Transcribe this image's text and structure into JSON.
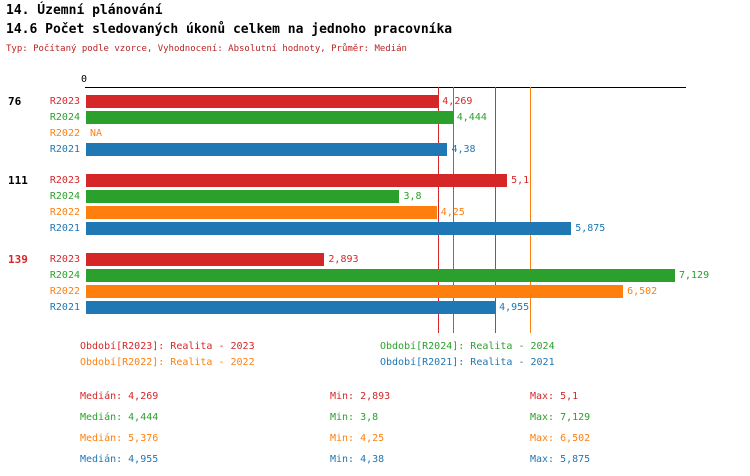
{
  "header": {
    "title_line1": "14. Územní plánování",
    "title_line2": "14.6 Počet sledovaných úkonů celkem na jednoho pracovníka",
    "subtitle": "Typ: Počítaný podle vzorce, Vyhodnocení: Absolutní hodnoty, Průměr: Medián"
  },
  "colors": {
    "R2023": "#d62728",
    "R2024": "#2ca02c",
    "R2022": "#ff7f0e",
    "R2021": "#1f77b4",
    "axis": "#000000",
    "subtitle": "#bb2222",
    "group_label_default": "#000000",
    "group_label_highlight": "#d62728"
  },
  "chart_data": {
    "type": "bar",
    "orientation": "horizontal",
    "title": "14.6 Počet sledovaných úkonů celkem na jednoho pracovníka",
    "x_axis": {
      "min": 0,
      "max": 7.25,
      "zero_label": "0",
      "grid": false
    },
    "series_order": [
      "R2023",
      "R2024",
      "R2022",
      "R2021"
    ],
    "groups": [
      {
        "label": "76",
        "highlighted": false,
        "bars": [
          {
            "series": "R2023",
            "value": 4.269,
            "display": "4,269"
          },
          {
            "series": "R2024",
            "value": 4.444,
            "display": "4,444"
          },
          {
            "series": "R2022",
            "value": null,
            "display": "NA"
          },
          {
            "series": "R2021",
            "value": 4.38,
            "display": "4,38"
          }
        ]
      },
      {
        "label": "111",
        "highlighted": false,
        "bars": [
          {
            "series": "R2023",
            "value": 5.1,
            "display": "5,1"
          },
          {
            "series": "R2024",
            "value": 3.8,
            "display": "3,8"
          },
          {
            "series": "R2022",
            "value": 4.25,
            "display": "4,25"
          },
          {
            "series": "R2021",
            "value": 5.875,
            "display": "5,875"
          }
        ]
      },
      {
        "label": "139",
        "highlighted": true,
        "bars": [
          {
            "series": "R2023",
            "value": 2.893,
            "display": "2,893"
          },
          {
            "series": "R2024",
            "value": 7.129,
            "display": "7,129"
          },
          {
            "series": "R2022",
            "value": 6.502,
            "display": "6,502"
          },
          {
            "series": "R2021",
            "value": 4.955,
            "display": "4,955"
          }
        ]
      }
    ],
    "median_lines": [
      {
        "series": "R2023",
        "value": 4.269
      },
      {
        "series": "R2024",
        "value": 4.444
      },
      {
        "series": "R2022",
        "value": 5.376
      },
      {
        "series": "R2021",
        "value": 4.955
      }
    ]
  },
  "legend": {
    "items": [
      {
        "series": "R2023",
        "text": "Období[R2023]: Realita - 2023"
      },
      {
        "series": "R2024",
        "text": "Období[R2024]: Realita - 2024"
      },
      {
        "series": "R2022",
        "text": "Období[R2022]: Realita - 2022"
      },
      {
        "series": "R2021",
        "text": "Období[R2021]: Realita - 2021"
      }
    ]
  },
  "stats": {
    "labels": {
      "median": "Medián",
      "min": "Min",
      "max": "Max"
    },
    "rows": [
      {
        "series": "R2023",
        "median": "4,269",
        "min": "2,893",
        "max": "5,1"
      },
      {
        "series": "R2024",
        "median": "4,444",
        "min": "3,8",
        "max": "7,129"
      },
      {
        "series": "R2022",
        "median": "5,376",
        "min": "4,25",
        "max": "6,502"
      },
      {
        "series": "R2021",
        "median": "4,955",
        "min": "4,38",
        "max": "5,875"
      }
    ]
  }
}
